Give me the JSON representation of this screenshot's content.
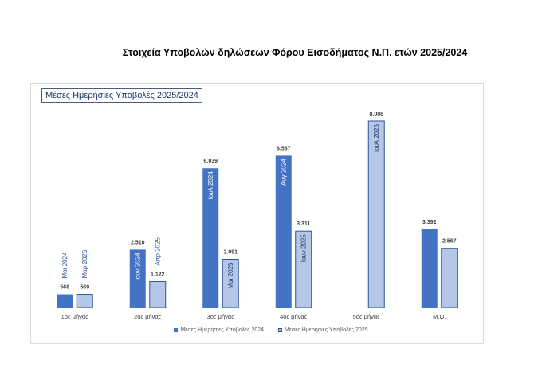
{
  "page_title": "Στοιχεία Υποβολών δηλώσεων Φόρου Εισοδήματος Ν.Π. ετών 2025/2024",
  "colors": {
    "series_2024": "#4472c4",
    "series_2025": "#b4c7e7",
    "border_2025": "#2f5597",
    "axis": "#d9d9d9",
    "label": "#404040"
  },
  "chart_data": {
    "type": "bar",
    "title": "Μέσες Ημερήσιες Υποβολές 2025/2024",
    "categories": [
      "1ος μήνας",
      "2ος μήνας",
      "3ος μήνας",
      "4ος μήνας",
      "5ος μήνας",
      "Μ.Ο."
    ],
    "series": [
      {
        "name": "Μέσες Ημερήσιες Υποβολές 2024",
        "values": [
          568,
          2510,
          6039,
          6587,
          null,
          3392
        ],
        "value_labels": [
          "568",
          "2.510",
          "6.039",
          "6.587",
          "",
          "3.392"
        ],
        "month_labels": [
          "Μαι 2024",
          "Ιουν 2024",
          "Ιουλ 2024",
          "Αυγ 2024",
          "",
          ""
        ]
      },
      {
        "name": "Μέσες Ημερήσιες Υποβολές 2025",
        "values": [
          569,
          1122,
          2091,
          3311,
          8086,
          2567
        ],
        "value_labels": [
          "569",
          "1.122",
          "2.091",
          "3.311",
          "8.086",
          "2.567"
        ],
        "month_labels": [
          "Μαρ 2025",
          "Απρ 2025",
          "Μαι 2025",
          "Ιουν 2025",
          "Ιουλ 2025",
          ""
        ]
      }
    ],
    "ylim": [
      0,
      8500
    ],
    "grid": false,
    "legend_position": "bottom"
  }
}
